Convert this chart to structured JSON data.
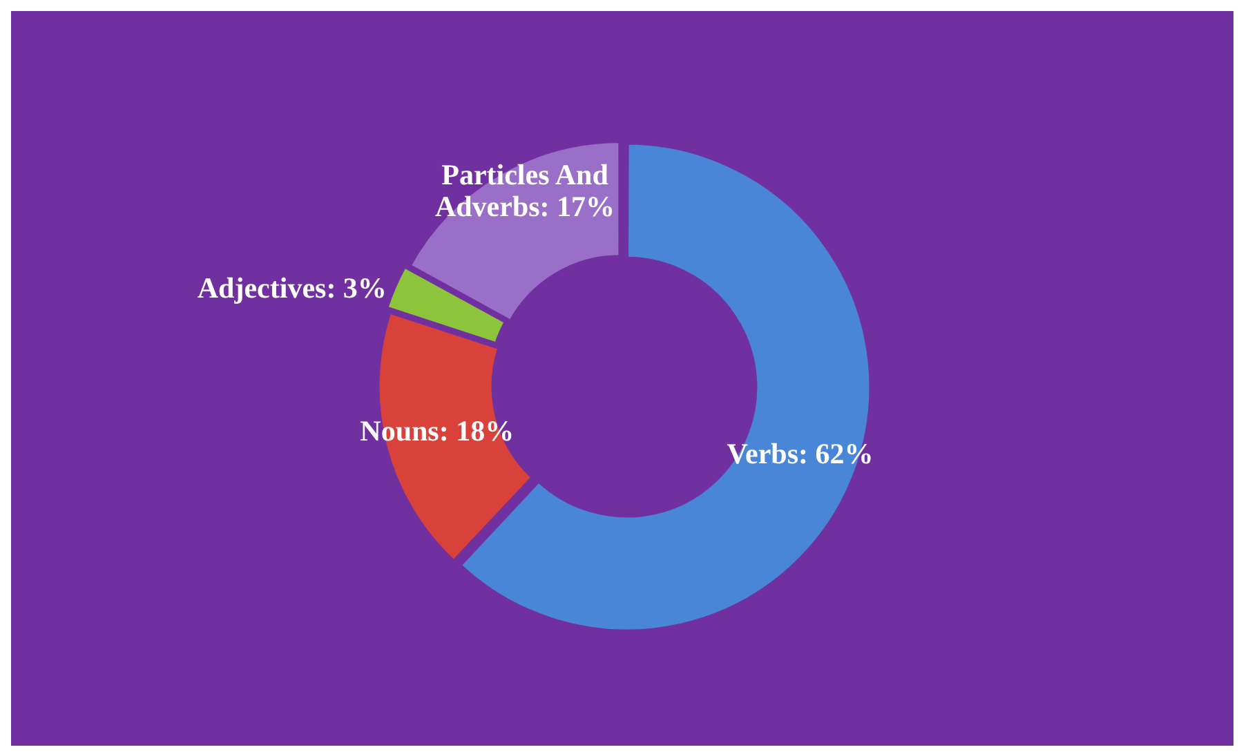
{
  "chart_data": {
    "type": "donut",
    "categories": [
      "Verbs",
      "Nouns",
      "Adjectives",
      "Particles And Adverbs"
    ],
    "values": [
      62,
      18,
      3,
      17
    ],
    "value_labels": [
      "62%",
      "18%",
      "3%",
      "17%"
    ],
    "colors": [
      "#4a86d8",
      "#d9423a",
      "#8cc43c",
      "#9a6fc8"
    ],
    "legend": false
  }
}
